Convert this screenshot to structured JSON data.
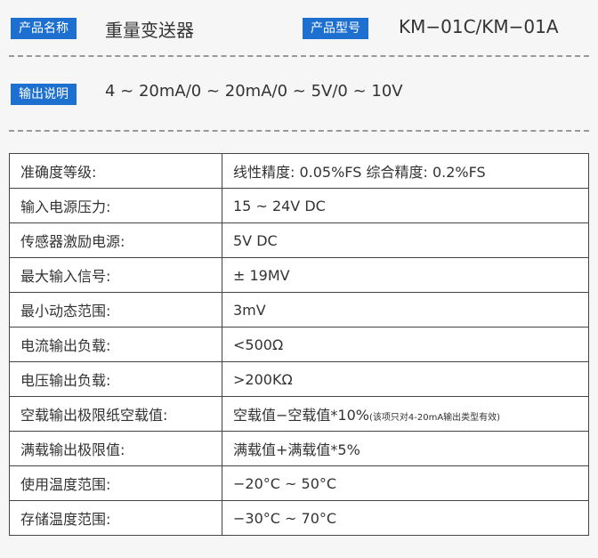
{
  "header": {
    "product_name_label": "产品名称",
    "product_name": "重量变送器",
    "model_label": "产品型号",
    "model": "KM−01C/KM−01A"
  },
  "output": {
    "label": "输出说明",
    "text": "4 ~ 20mA/0 ~ 20mA/0 ~ 5V/0 ~ 10V"
  },
  "table": {
    "rows": [
      [
        "准确度等级:",
        "线性精度: 0.05%FS 综合精度: 0.2%FS"
      ],
      [
        "输入电源压力:",
        "15 ~ 24V DC"
      ],
      [
        "传感器激励电源:",
        "5V DC"
      ],
      [
        "最大输入信号:",
        "± 19MV"
      ],
      [
        "最小动态范围:",
        "3mV"
      ],
      [
        "电流输出负载:",
        "<500Ω"
      ],
      [
        "电压输出负载:",
        ">200KΩ"
      ],
      [
        "空载输出极限纸空载值:",
        {
          "text": "空载值−空载值*10%",
          "note": "(该项只对4-20mA输出类型有效)"
        }
      ],
      [
        "满载输出极限值:",
        "满载值+满载值*5%"
      ],
      [
        "使用温度范围:",
        "−20°C ~ 50°C"
      ],
      [
        "存储温度范围:",
        "−30°C ~ 70°C"
      ]
    ]
  }
}
